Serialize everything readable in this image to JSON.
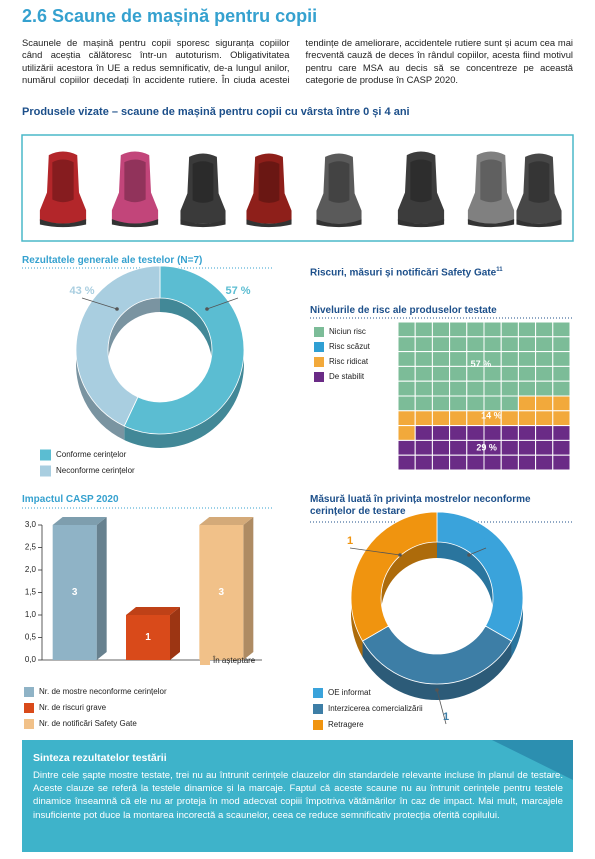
{
  "header": {
    "title": "2.6 Scaune de mașină pentru copii"
  },
  "intro": {
    "text": "Scaunele de mașină pentru copii sporesc siguranța copiilor când aceștia călătoresc într-un autoturism. Obligativitatea utilizării acestora în UE a redus semnificativ, de-a lungul anilor, numărul copiilor decedați în accidente rutiere. În ciuda acestei tendințe de ameliorare, accidentele rutiere sunt și acum cea mai frecventă cauză de deces în rândul copiilor, acesta fiind motivul pentru care MSA au decis să se concentreze pe această categorie de produse în CASP 2020."
  },
  "products": {
    "title": "Produsele vizate – scaune de mașină pentru copii cu vârsta între 0 și 4 ani"
  },
  "section": {
    "title": "Riscuri, măsuri și notificări Safety Gate",
    "footnote": "11"
  },
  "chart_data": [
    {
      "type": "donut",
      "title": "Rezultatele generale ale testelor (N=7)",
      "categories": [
        "Conforme cerințelor",
        "Neconforme cerințelor"
      ],
      "values": [
        57,
        43
      ],
      "value_labels": [
        "57 %",
        "43 %"
      ],
      "colors": [
        "#5bbdd2",
        "#a9cee0"
      ]
    },
    {
      "type": "waffle",
      "title": "Nivelurile de risc ale produselor testate",
      "categories": [
        "Niciun risc",
        "Risc scăzut",
        "Risc ridicat",
        "De stabilit"
      ],
      "values": [
        57,
        0,
        14,
        29
      ],
      "value_labels": [
        "57 %",
        null,
        "14 %",
        "29 %"
      ],
      "colors": [
        "#7cbc98",
        "#2f9fd3",
        "#f2a93b",
        "#6a2b86"
      ]
    },
    {
      "type": "bar",
      "title": "Impactul CASP 2020",
      "categories": [
        "Nr. de mostre neconforme cerințelor",
        "Nr. de riscuri grave",
        "Nr. de notificări Safety Gate"
      ],
      "values": [
        3,
        1,
        3
      ],
      "colors": [
        "#8fb3c6",
        "#d94a1a",
        "#f1c189"
      ],
      "ylim": [
        0,
        3
      ],
      "yticks": [
        {
          "value": 0,
          "label": "0,0"
        },
        {
          "value": 0.5,
          "label": "0,5"
        },
        {
          "value": 1,
          "label": "1,0"
        },
        {
          "value": 1.5,
          "label": "1,5"
        },
        {
          "value": 2,
          "label": "2,0"
        },
        {
          "value": 2.5,
          "label": "2,5"
        },
        {
          "value": 3,
          "label": "3,0"
        }
      ],
      "annotation": "În așteptare"
    },
    {
      "type": "donut",
      "title": "Măsură luată în privința mostrelor neconforme cerințelor de testare",
      "categories": [
        "OE informat",
        "Interzicerea comercializării",
        "Retragere"
      ],
      "values": [
        1,
        1,
        1
      ],
      "colors": [
        "#3aa3db",
        "#3d7ea6",
        "#f0940f"
      ]
    }
  ],
  "summary": {
    "title": "Sinteza rezultatelor testării",
    "text": "Dintre cele șapte mostre testate, trei nu au întrunit cerințele clauzelor din standardele relevante incluse în planul de testare. Aceste clauze se referă la testele dinamice și la marcaje. Faptul că aceste scaune nu au întrunit cerințele pentru testele dinamice înseamnă că ele nu ar proteja în mod adecvat copiii împotriva vătămărilor în caz de impact. Mai mult, marcajele insuficiente pot duce la montarea incorectă a scaunelor, ceea ce reduce semnificativ protecția oferită copilului."
  }
}
